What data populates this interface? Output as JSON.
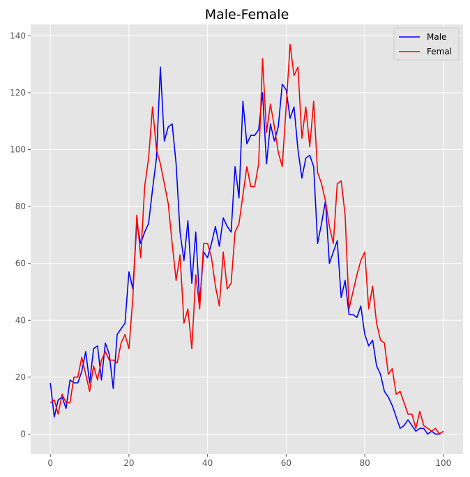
{
  "chart_data": {
    "type": "line",
    "title": "Male-Female",
    "xlabel": "",
    "ylabel": "",
    "xlim": [
      -5,
      105
    ],
    "ylim": [
      -7,
      144
    ],
    "xticks": [
      0,
      20,
      40,
      60,
      80,
      100
    ],
    "yticks": [
      0,
      20,
      40,
      60,
      80,
      100,
      120,
      140
    ],
    "grid": true,
    "legend_position": "top-right",
    "series": [
      {
        "name": "Male",
        "color": "#0000ff",
        "x": [
          0,
          1,
          2,
          3,
          4,
          5,
          6,
          7,
          8,
          9,
          10,
          11,
          12,
          13,
          14,
          15,
          16,
          17,
          18,
          19,
          20,
          21,
          22,
          23,
          24,
          25,
          26,
          27,
          28,
          29,
          30,
          31,
          32,
          33,
          34,
          35,
          36,
          37,
          38,
          39,
          40,
          41,
          42,
          43,
          44,
          45,
          46,
          47,
          48,
          49,
          50,
          51,
          52,
          53,
          54,
          55,
          56,
          57,
          58,
          59,
          60,
          61,
          62,
          63,
          64,
          65,
          66,
          67,
          68,
          69,
          70,
          71,
          72,
          73,
          74,
          75,
          76,
          77,
          78,
          79,
          80,
          81,
          82,
          83,
          84,
          85,
          86,
          87,
          88,
          89,
          90,
          91,
          92,
          93,
          94,
          95,
          96,
          97,
          98,
          99,
          100
        ],
        "values": [
          18,
          6,
          12,
          13,
          9,
          19,
          18,
          18,
          22,
          29,
          18,
          30,
          31,
          19,
          32,
          28,
          16,
          35,
          37,
          39,
          57,
          51,
          74,
          67,
          71,
          74,
          86,
          97,
          129,
          103,
          108,
          109,
          95,
          71,
          61,
          75,
          53,
          71,
          46,
          64,
          62,
          67,
          73,
          66,
          76,
          73,
          71,
          94,
          83,
          117,
          102,
          105,
          105,
          107,
          120,
          95,
          109,
          103,
          108,
          123,
          121,
          111,
          115,
          100,
          90,
          97,
          98,
          94,
          67,
          74,
          82,
          60,
          64,
          68,
          48,
          54,
          42,
          42,
          41,
          45,
          35,
          31,
          33,
          24,
          21,
          15,
          13,
          10,
          6,
          2,
          3,
          5,
          3,
          1,
          2,
          2,
          0,
          1,
          0,
          0,
          1
        ]
      },
      {
        "name": "Femal",
        "color": "#ff0000",
        "x": [
          0,
          1,
          2,
          3,
          4,
          5,
          6,
          7,
          8,
          9,
          10,
          11,
          12,
          13,
          14,
          15,
          16,
          17,
          18,
          19,
          20,
          21,
          22,
          23,
          24,
          25,
          26,
          27,
          28,
          29,
          30,
          31,
          32,
          33,
          34,
          35,
          36,
          37,
          38,
          39,
          40,
          41,
          42,
          43,
          44,
          45,
          46,
          47,
          48,
          49,
          50,
          51,
          52,
          53,
          54,
          55,
          56,
          57,
          58,
          59,
          60,
          61,
          62,
          63,
          64,
          65,
          66,
          67,
          68,
          69,
          70,
          71,
          72,
          73,
          74,
          75,
          76,
          77,
          78,
          79,
          80,
          81,
          82,
          83,
          84,
          85,
          86,
          87,
          88,
          89,
          90,
          91,
          92,
          93,
          94,
          95,
          96,
          97,
          98,
          99,
          100
        ],
        "values": [
          11,
          12,
          7,
          14,
          11,
          11,
          20,
          20,
          27,
          21,
          15,
          24,
          19,
          26,
          29,
          26,
          26,
          25,
          32,
          35,
          30,
          48,
          77,
          62,
          87,
          97,
          115,
          100,
          95,
          88,
          81,
          67,
          54,
          63,
          39,
          44,
          30,
          56,
          44,
          67,
          67,
          62,
          52,
          45,
          64,
          51,
          53,
          71,
          74,
          84,
          94,
          87,
          87,
          95,
          132,
          106,
          116,
          108,
          99,
          94,
          115,
          137,
          126,
          129,
          104,
          115,
          101,
          117,
          92,
          88,
          82,
          73,
          67,
          88,
          89,
          77,
          44,
          50,
          56,
          61,
          64,
          44,
          52,
          39,
          33,
          32,
          21,
          23,
          14,
          15,
          11,
          7,
          7,
          2,
          8,
          3,
          2,
          1,
          2,
          0,
          1
        ]
      }
    ]
  }
}
